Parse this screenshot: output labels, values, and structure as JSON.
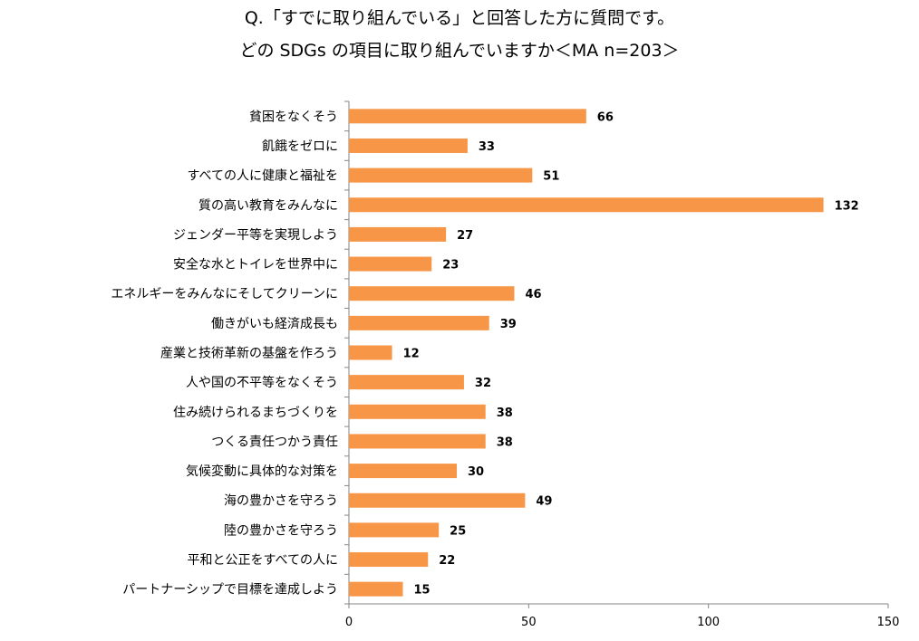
{
  "title_line1": "Q.「すでに取り組んでいる」と回答した方に質問です。",
  "title_line2": "どの SDGs の項目に取り組んでいますか＜MA n=203＞",
  "chart_data": {
    "type": "bar",
    "orientation": "horizontal",
    "categories": [
      "貧困をなくそう",
      "飢餓をゼロに",
      "すべての人に健康と福祉を",
      "質の高い教育をみんなに",
      "ジェンダー平等を実現しよう",
      "安全な水とトイレを世界中に",
      "エネルギーをみんなにそしてクリーンに",
      "働きがいも経済成長も",
      "産業と技術革新の基盤を作ろう",
      "人や国の不平等をなくそう",
      "住み続けられるまちづくりを",
      "つくる責任つかう責任",
      "気候変動に具体的な対策を",
      "海の豊かさを守ろう",
      "陸の豊かさを守ろう",
      "平和と公正をすべての人に",
      "パートナーシップで目標を達成しよう"
    ],
    "values": [
      66,
      33,
      51,
      132,
      27,
      23,
      46,
      39,
      12,
      32,
      38,
      38,
      30,
      49,
      25,
      22,
      15
    ],
    "xlim": [
      0,
      150
    ],
    "xticks": [
      0,
      50,
      100,
      150
    ],
    "bar_color": "#F79646",
    "grid": false,
    "legend": "none"
  }
}
